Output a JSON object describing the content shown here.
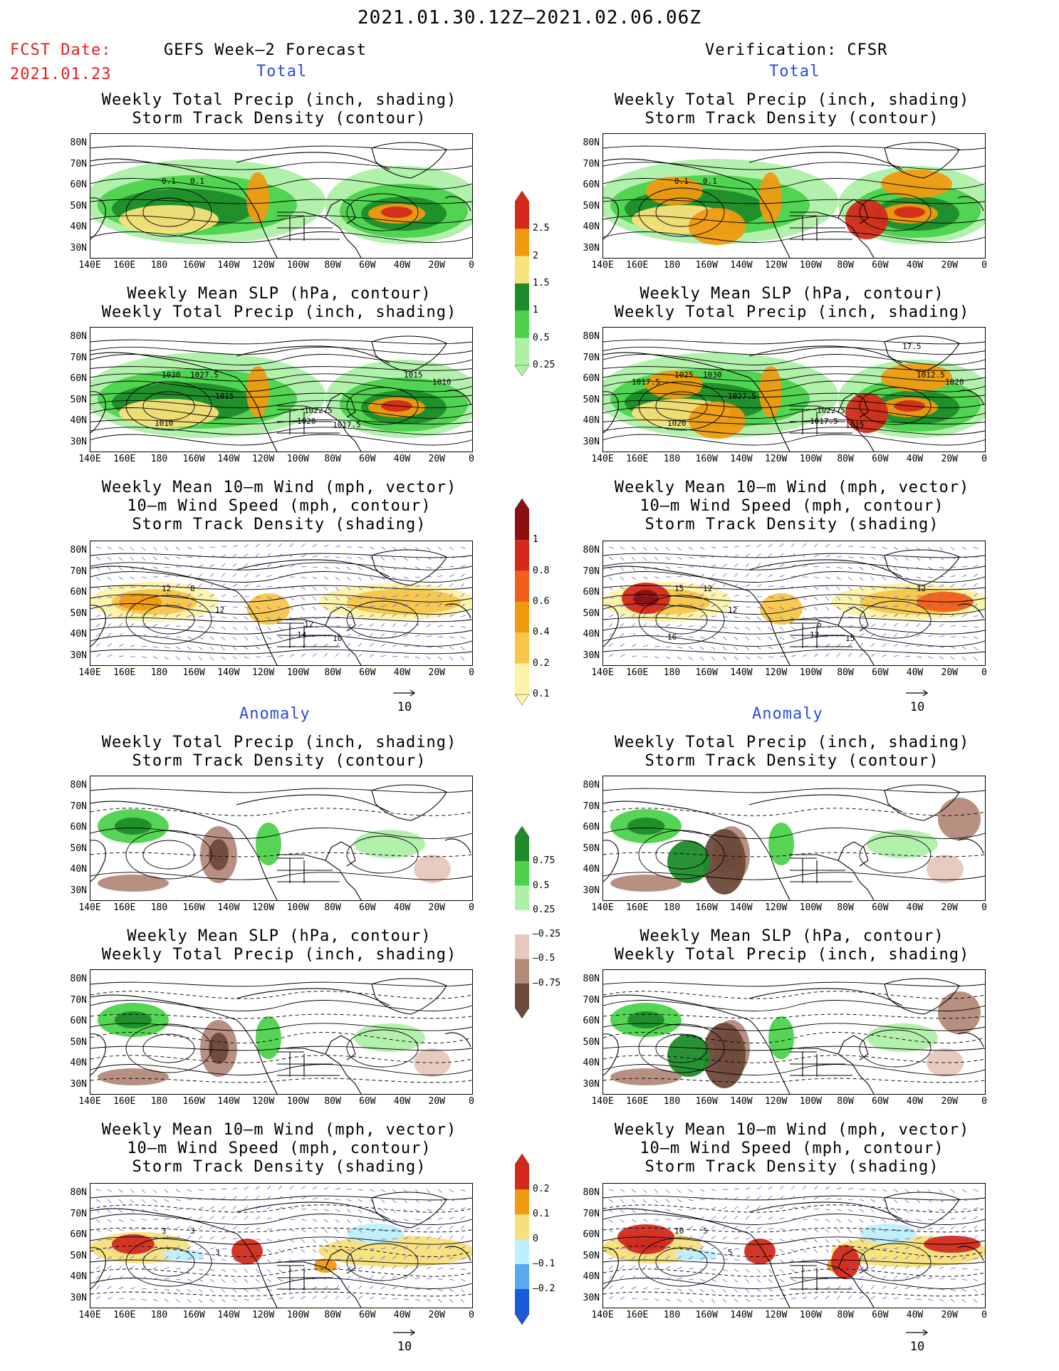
{
  "header": {
    "date_range": "2021.01.30.12Z–2021.02.06.06Z",
    "fcst_label": "FCST Date:",
    "fcst_date": "2021.01.23",
    "left_title": "GEFS Week–2 Forecast",
    "right_title": "Verification: CFSR"
  },
  "sections": {
    "total": "Total",
    "anomaly": "Anomaly"
  },
  "panel_titles": {
    "precip_storm": [
      "Weekly Total Precip (inch, shading)",
      "Storm Track Density (contour)"
    ],
    "slp_precip": [
      "Weekly Mean SLP (hPa, contour)",
      "Weekly Total Precip (inch, shading)"
    ],
    "wind_storm": [
      "Weekly Mean 10–m Wind (mph, vector)",
      "10–m Wind Speed (mph, contour)",
      "Storm Track Density (shading)"
    ]
  },
  "axes": {
    "lat_ticks": [
      "80N",
      "70N",
      "60N",
      "50N",
      "40N",
      "30N"
    ],
    "lon_ticks": [
      "140E",
      "160E",
      "180",
      "160W",
      "140W",
      "120W",
      "100W",
      "80W",
      "60W",
      "40W",
      "20W",
      "0"
    ]
  },
  "vector_ref": "10",
  "colorbars": {
    "precip_total": {
      "labels": [
        "2.5",
        "2",
        "1.5",
        "1",
        "0.5",
        "0.25"
      ],
      "colors": [
        "#d42a1a",
        "#f09a10",
        "#f9e27a",
        "#1e8c2a",
        "#4cd24c",
        "#aef0a8"
      ]
    },
    "storm_total": {
      "labels": [
        "1",
        "0.8",
        "0.6",
        "0.4",
        "0.2",
        "0.1"
      ],
      "colors": [
        "#8c1010",
        "#d42a1a",
        "#f0601a",
        "#f09a10",
        "#f7c54a",
        "#fcf2a8"
      ]
    },
    "precip_anom": {
      "labels": [
        "0.75",
        "0.5",
        "0.25",
        "–0.25",
        "–0.5",
        "–0.75"
      ],
      "colors": [
        "#1e8c2a",
        "#4cd24c",
        "#aef0a8",
        "#ffffff",
        "#e6c8bc",
        "#b48a7a",
        "#6e4a3a"
      ]
    },
    "storm_anom": {
      "labels": [
        "0.2",
        "0.1",
        "0",
        "–0.1",
        "–0.2"
      ],
      "colors": [
        "#d42a1a",
        "#f09a10",
        "#f7e07a",
        "#bfeefc",
        "#5aa8f0",
        "#1a5ad8"
      ]
    }
  },
  "contour_labels": {
    "L1": [
      "0.1",
      "0.1"
    ],
    "R1": [
      "0.1",
      "0.1"
    ],
    "L2": [
      "1030",
      "1027.5",
      "1015",
      "1022.5",
      "1020",
      "1017.5",
      "1010",
      "1015",
      "1010"
    ],
    "R2": [
      "1025",
      "1030",
      "1027.5",
      "1022.5",
      "1017.5",
      "1015",
      "1020",
      "1012.5",
      "1020",
      "1017.5",
      "17.5"
    ],
    "L3": [
      "12",
      "8",
      "12",
      "12",
      "14",
      "10"
    ],
    "R3": [
      "15",
      "12",
      "12",
      "6",
      "12",
      "15",
      "16",
      "12"
    ],
    "L6": [
      "3",
      "3",
      "3"
    ],
    "R6": [
      "10",
      "5",
      "5"
    ]
  }
}
